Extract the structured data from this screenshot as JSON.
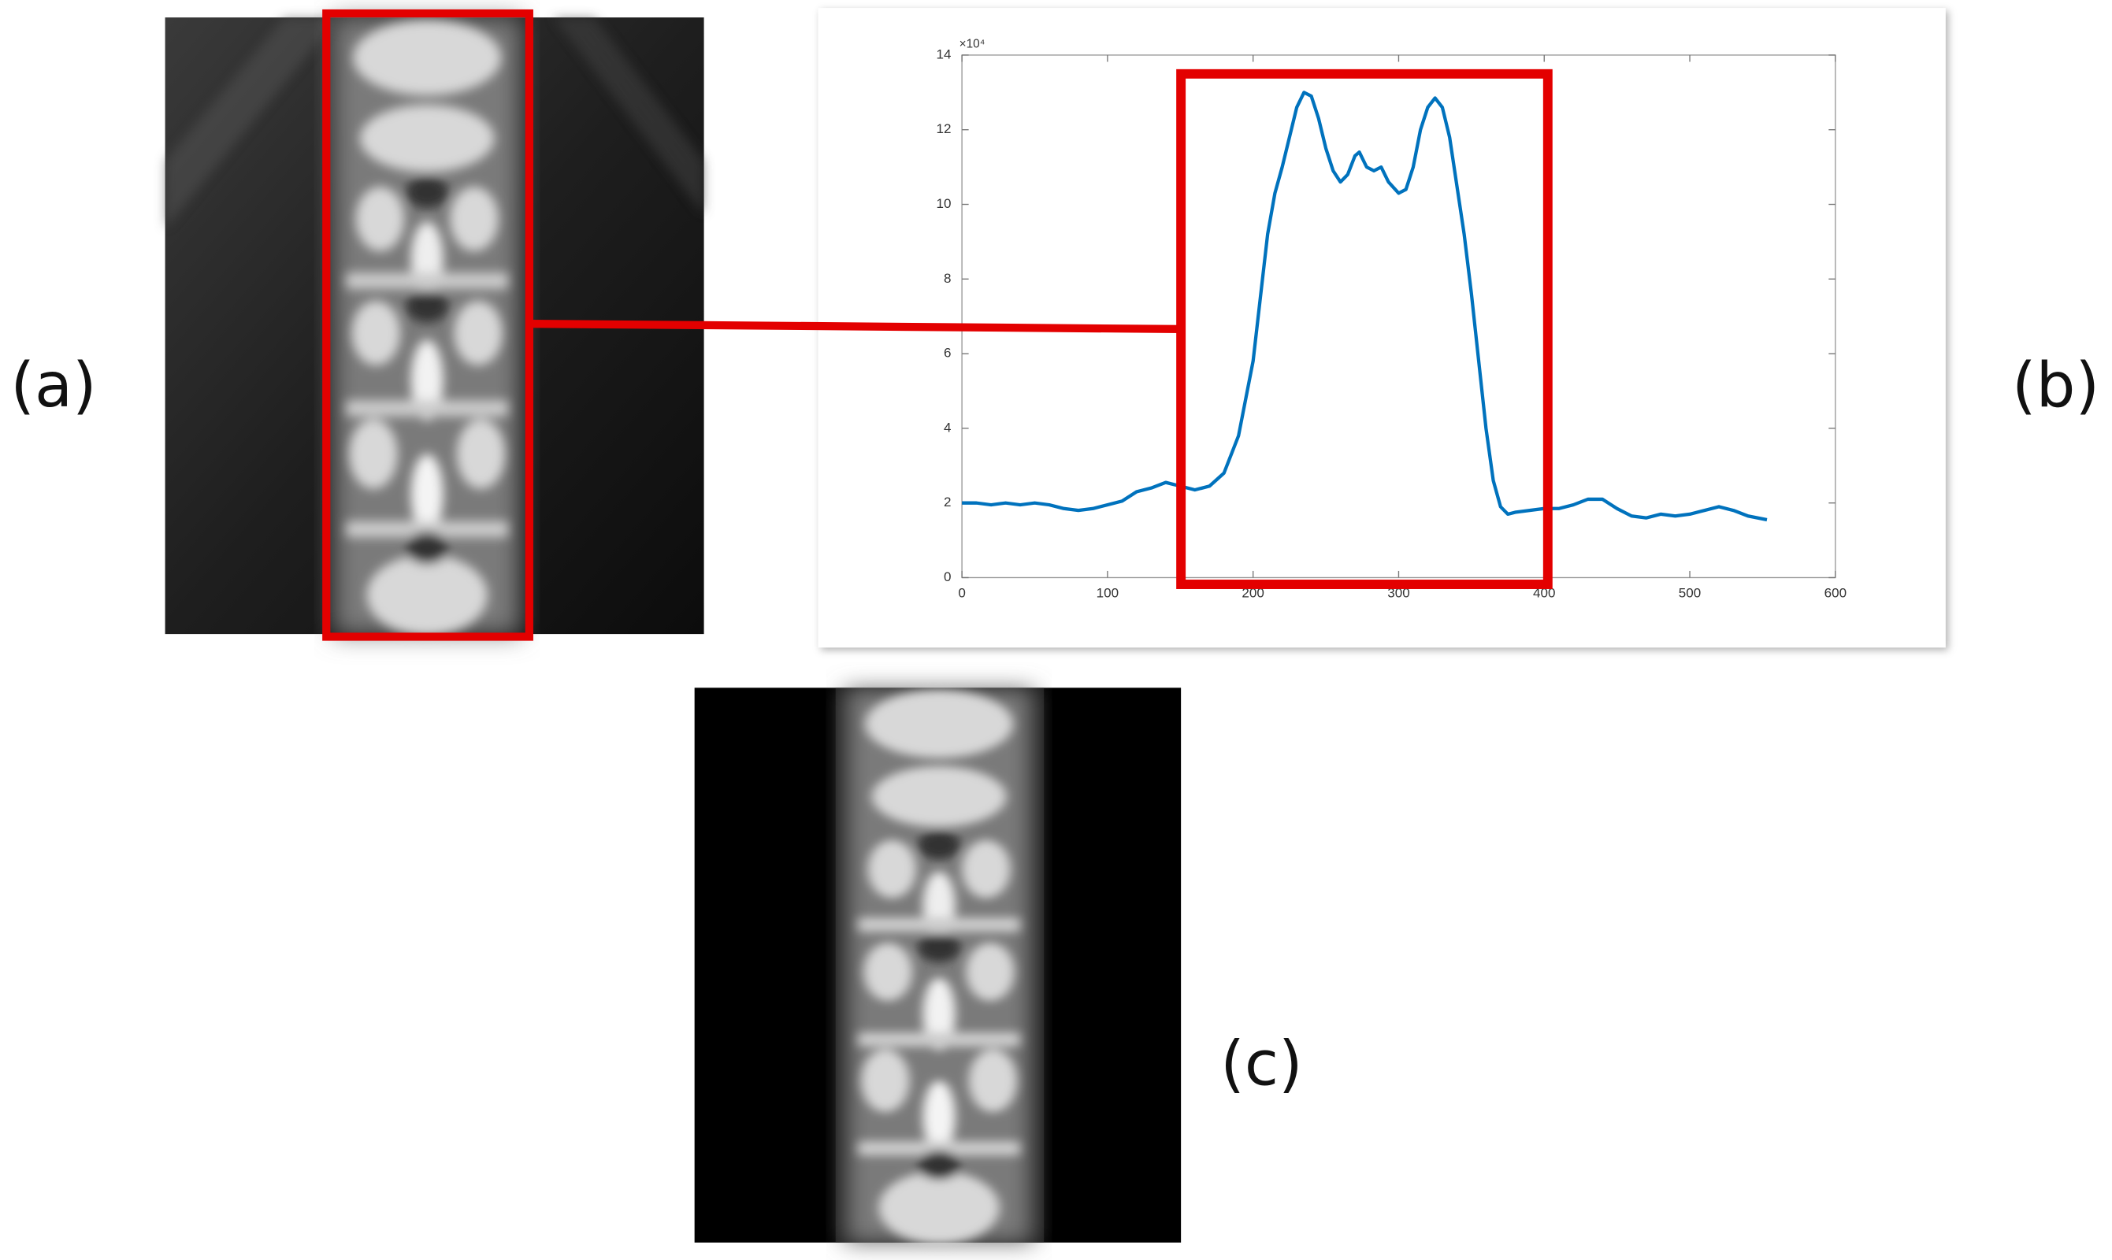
{
  "panel_labels": [
    "(a)",
    "(b)",
    "(c)"
  ],
  "chart_data": {
    "type": "line",
    "y_multiplier": "×10⁴",
    "xlim": [
      0,
      600
    ],
    "xticks": [
      0,
      100,
      200,
      300,
      400,
      500,
      600
    ],
    "ylim": [
      0,
      14
    ],
    "yticks": [
      0,
      2,
      4,
      6,
      8,
      10,
      12,
      14
    ],
    "series": [
      {
        "color": "#0072bd",
        "x": [
          0,
          10,
          20,
          30,
          40,
          50,
          60,
          70,
          80,
          90,
          100,
          110,
          120,
          130,
          140,
          150,
          160,
          170,
          180,
          190,
          200,
          205,
          210,
          215,
          220,
          225,
          230,
          235,
          240,
          245,
          250,
          255,
          260,
          265,
          270,
          273,
          278,
          283,
          288,
          293,
          300,
          305,
          310,
          315,
          320,
          325,
          330,
          335,
          340,
          345,
          350,
          355,
          360,
          365,
          370,
          375,
          380,
          390,
          400,
          410,
          420,
          430,
          440,
          450,
          460,
          470,
          480,
          490,
          500,
          510,
          520,
          530,
          540,
          553
        ],
        "values": [
          2.0,
          2.0,
          1.95,
          2.0,
          1.95,
          2.0,
          1.95,
          1.85,
          1.8,
          1.85,
          1.95,
          2.05,
          2.3,
          2.4,
          2.55,
          2.45,
          2.35,
          2.45,
          2.8,
          3.8,
          5.8,
          7.5,
          9.2,
          10.3,
          11.0,
          11.8,
          12.6,
          13.0,
          12.9,
          12.3,
          11.5,
          10.9,
          10.6,
          10.8,
          11.3,
          11.4,
          11.0,
          10.9,
          11.0,
          10.6,
          10.3,
          10.4,
          11.0,
          12.0,
          12.6,
          12.85,
          12.6,
          11.8,
          10.5,
          9.2,
          7.6,
          5.8,
          4.0,
          2.6,
          1.9,
          1.7,
          1.75,
          1.8,
          1.85,
          1.85,
          1.95,
          2.1,
          2.1,
          1.85,
          1.65,
          1.6,
          1.7,
          1.65,
          1.7,
          1.8,
          1.9,
          1.8,
          1.65,
          1.55
        ]
      }
    ]
  }
}
